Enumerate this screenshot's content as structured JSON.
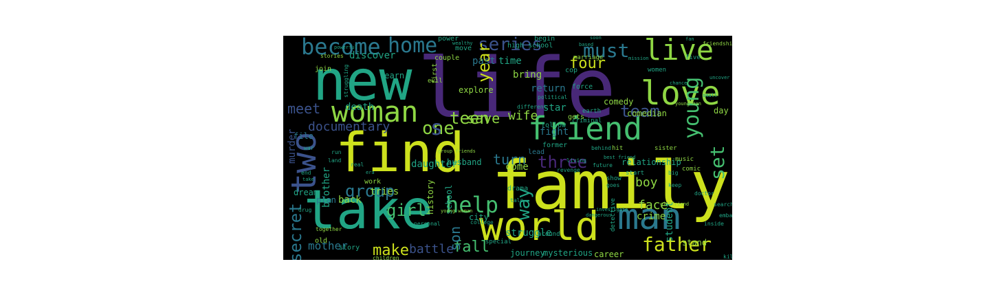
{
  "figure": {
    "background": "#000000",
    "page_background": "#ffffff",
    "palette": {
      "yellow": "#cde11d",
      "lime": "#8fd744",
      "green": "#45bf70",
      "teal": "#21a585",
      "tealblue": "#2a788e",
      "blue": "#33638d",
      "indigo": "#3b528b",
      "purple": "#482878",
      "darkpurple": "#440154"
    },
    "words": [
      {
        "text": "life",
        "color": "purple",
        "rotated": false
      },
      {
        "text": "find",
        "color": "yellow",
        "rotated": false
      },
      {
        "text": "family",
        "color": "yellow",
        "rotated": false
      },
      {
        "text": "new",
        "color": "teal",
        "rotated": false
      },
      {
        "text": "take",
        "color": "teal",
        "rotated": false
      },
      {
        "text": "world",
        "color": "yellow",
        "rotated": false
      },
      {
        "text": "friend",
        "color": "green",
        "rotated": false
      },
      {
        "text": "love",
        "color": "lime",
        "rotated": false
      },
      {
        "text": "man",
        "color": "tealblue",
        "rotated": false
      },
      {
        "text": "woman",
        "color": "lime",
        "rotated": false
      },
      {
        "text": "two",
        "color": "indigo",
        "rotated": true
      },
      {
        "text": "live",
        "color": "lime",
        "rotated": false
      },
      {
        "text": "become",
        "color": "tealblue",
        "rotated": false
      },
      {
        "text": "home",
        "color": "tealblue",
        "rotated": false
      },
      {
        "text": "father",
        "color": "yellow",
        "rotated": false
      },
      {
        "text": "young",
        "color": "green",
        "rotated": true
      },
      {
        "text": "help",
        "color": "green",
        "rotated": false
      },
      {
        "text": "one",
        "color": "lime",
        "rotated": false
      },
      {
        "text": "must",
        "color": "tealblue",
        "rotated": false
      },
      {
        "text": "series",
        "color": "indigo",
        "rotated": false
      },
      {
        "text": "team",
        "color": "indigo",
        "rotated": false
      },
      {
        "text": "three",
        "color": "purple",
        "rotated": false
      },
      {
        "text": "teen",
        "color": "lime",
        "rotated": false
      },
      {
        "text": "save",
        "color": "lime",
        "rotated": false
      },
      {
        "text": "turn",
        "color": "tealblue",
        "rotated": false
      },
      {
        "text": "group",
        "color": "tealblue",
        "rotated": false
      },
      {
        "text": "girl",
        "color": "green",
        "rotated": false
      },
      {
        "text": "year",
        "color": "yellow",
        "rotated": true
      },
      {
        "text": "four",
        "color": "yellow",
        "rotated": false
      },
      {
        "text": "set",
        "color": "green",
        "rotated": true
      },
      {
        "text": "way",
        "color": "teal",
        "rotated": true
      },
      {
        "text": "make",
        "color": "yellow",
        "rotated": false
      },
      {
        "text": "fall",
        "color": "green",
        "rotated": false
      },
      {
        "text": "son",
        "color": "tealblue",
        "rotated": true
      },
      {
        "text": "meet",
        "color": "indigo",
        "rotated": false
      },
      {
        "text": "wife",
        "color": "lime",
        "rotated": false
      },
      {
        "text": "secret",
        "color": "tealblue",
        "rotated": true
      },
      {
        "text": "documentary",
        "color": "indigo",
        "rotated": false
      },
      {
        "text": "face",
        "color": "lime",
        "rotated": false
      },
      {
        "text": "boy",
        "color": "lime",
        "rotated": false
      },
      {
        "text": "mother",
        "color": "tealblue",
        "rotated": false
      },
      {
        "text": "battle",
        "color": "indigo",
        "rotated": false
      },
      {
        "text": "murder",
        "color": "indigo",
        "rotated": true
      },
      {
        "text": "crime",
        "color": "lime",
        "rotated": false
      },
      {
        "text": "s",
        "color": "indigo",
        "rotated": false
      },
      {
        "text": "brother",
        "color": "teal",
        "rotated": true
      },
      {
        "text": "tries",
        "color": "lime",
        "rotated": false
      },
      {
        "text": "back",
        "color": "lime",
        "rotated": false
      },
      {
        "text": "come",
        "color": "lime",
        "rotated": false
      },
      {
        "text": "fight",
        "color": "tealblue",
        "rotated": false
      },
      {
        "text": "death",
        "color": "teal",
        "rotated": false
      },
      {
        "text": "discover",
        "color": "teal",
        "rotated": false
      },
      {
        "text": "learn",
        "color": "teal",
        "rotated": false
      },
      {
        "text": "past",
        "color": "tealblue",
        "rotated": false
      },
      {
        "text": "time",
        "color": "teal",
        "rotated": false
      },
      {
        "text": "bring",
        "color": "lime",
        "rotated": false
      },
      {
        "text": "return",
        "color": "tealblue",
        "rotated": false
      },
      {
        "text": "star",
        "color": "teal",
        "rotated": false
      },
      {
        "text": "explore",
        "color": "lime",
        "rotated": false
      },
      {
        "text": "daughter",
        "color": "teal",
        "rotated": false
      },
      {
        "text": "husband",
        "color": "teal",
        "rotated": false
      },
      {
        "text": "file",
        "color": "tealblue",
        "rotated": false
      },
      {
        "text": "relationship",
        "color": "teal",
        "rotated": false
      },
      {
        "text": "student",
        "color": "teal",
        "rotated": true
      },
      {
        "text": "stand",
        "color": "lime",
        "rotated": false
      },
      {
        "text": "struggle",
        "color": "teal",
        "rotated": false
      },
      {
        "text": "journey",
        "color": "teal",
        "rotated": false
      },
      {
        "text": "mysterious",
        "color": "teal",
        "rotated": false
      },
      {
        "text": "career",
        "color": "lime",
        "rotated": false
      },
      {
        "text": "adventure",
        "color": "teal",
        "rotated": true
      },
      {
        "text": "day",
        "color": "lime",
        "rotated": false
      },
      {
        "text": "comedy",
        "color": "lime",
        "rotated": false
      },
      {
        "text": "comedian",
        "color": "lime",
        "rotated": false
      },
      {
        "text": "dream",
        "color": "teal",
        "rotated": false
      },
      {
        "text": "plan",
        "color": "tealblue",
        "rotated": false
      },
      {
        "text": "history",
        "color": "lime",
        "rotated": true
      },
      {
        "text": "school",
        "color": "teal",
        "rotated": true
      },
      {
        "text": "first",
        "color": "lime",
        "rotated": true
      },
      {
        "text": "city",
        "color": "teal",
        "rotated": false
      },
      {
        "text": "old",
        "color": "lime",
        "rotated": false
      },
      {
        "text": "story",
        "color": "teal",
        "rotated": false
      },
      {
        "text": "work",
        "color": "lime",
        "rotated": false
      },
      {
        "text": "drama",
        "color": "teal",
        "rotated": false
      },
      {
        "text": "lead",
        "color": "tealblue",
        "rotated": false
      },
      {
        "text": "former",
        "color": "teal",
        "rotated": false
      },
      {
        "text": "follow",
        "color": "teal",
        "rotated": false
      },
      {
        "text": "gets",
        "color": "lime",
        "rotated": false
      },
      {
        "text": "force",
        "color": "teal",
        "rotated": false
      },
      {
        "text": "cop",
        "color": "teal",
        "rotated": false
      },
      {
        "text": "high school",
        "color": "teal",
        "rotated": false
      },
      {
        "text": "begin",
        "color": "teal",
        "rotated": false
      },
      {
        "text": "power",
        "color": "teal",
        "rotated": false
      },
      {
        "text": "move",
        "color": "teal",
        "rotated": false
      },
      {
        "text": "couple",
        "color": "lime",
        "rotated": false
      },
      {
        "text": "join",
        "color": "lime",
        "rotated": false
      },
      {
        "text": "stories",
        "color": "lime",
        "rotated": false
      },
      {
        "text": "evil",
        "color": "lime",
        "rotated": false
      },
      {
        "text": "marriage",
        "color": "lime",
        "rotated": false
      },
      {
        "text": "women",
        "color": "teal",
        "rotated": false
      },
      {
        "text": "sister",
        "color": "lime",
        "rotated": false
      },
      {
        "text": "music",
        "color": "lime",
        "rotated": false
      },
      {
        "text": "criminal",
        "color": "teal",
        "rotated": false
      },
      {
        "text": "earth",
        "color": "teal",
        "rotated": false
      },
      {
        "text": "together",
        "color": "lime",
        "rotated": false
      },
      {
        "text": "around",
        "color": "teal",
        "rotated": false
      },
      {
        "text": "special",
        "color": "teal",
        "rotated": false
      },
      {
        "text": "children",
        "color": "lime",
        "rotated": false
      },
      {
        "text": "friendship",
        "color": "lime",
        "rotated": false
      },
      {
        "text": "five",
        "color": "teal",
        "rotated": false
      },
      {
        "text": "show",
        "color": "teal",
        "rotated": false
      },
      {
        "text": "comic",
        "color": "lime",
        "rotated": false
      },
      {
        "text": "doctor",
        "color": "teal",
        "rotated": false
      },
      {
        "text": "hit",
        "color": "lime",
        "rotated": false
      },
      {
        "text": "start",
        "color": "teal",
        "rotated": false
      },
      {
        "text": "future",
        "color": "teal",
        "rotated": false
      },
      {
        "text": "different",
        "color": "teal",
        "rotated": false
      },
      {
        "text": "political",
        "color": "teal",
        "rotated": false
      },
      {
        "text": "personal",
        "color": "teal",
        "rotated": false
      },
      {
        "text": "college",
        "color": "teal",
        "rotated": false
      },
      {
        "text": "young man",
        "color": "lime",
        "rotated": false
      },
      {
        "text": "best friend",
        "color": "teal",
        "rotated": false
      },
      {
        "text": "detective",
        "color": "teal",
        "rotated": true
      },
      {
        "text": "land",
        "color": "teal",
        "rotated": false
      },
      {
        "text": "goes",
        "color": "teal",
        "rotated": false
      },
      {
        "text": "big",
        "color": "teal",
        "rotated": false
      },
      {
        "text": "keep",
        "color": "teal",
        "rotated": false
      },
      {
        "text": "embark",
        "color": "teal",
        "rotated": false
      },
      {
        "text": "search",
        "color": "teal",
        "rotated": false
      },
      {
        "text": "inside",
        "color": "teal",
        "rotated": false
      },
      {
        "text": "girlfriend",
        "color": "lime",
        "rotated": false
      },
      {
        "text": "dangerous",
        "color": "teal",
        "rotated": false
      },
      {
        "text": "investigate",
        "color": "teal",
        "rotated": false
      },
      {
        "text": "behind",
        "color": "teal",
        "rotated": false
      },
      {
        "text": "living",
        "color": "teal",
        "rotated": false
      },
      {
        "text": "revenge",
        "color": "teal",
        "rotated": false
      },
      {
        "text": "tale",
        "color": "teal",
        "rotated": false
      },
      {
        "text": "group friends",
        "color": "lime",
        "rotated": false
      },
      {
        "text": "young woman",
        "color": "lime",
        "rotated": false
      },
      {
        "text": "war",
        "color": "teal",
        "rotated": false
      },
      {
        "text": "real",
        "color": "teal",
        "rotated": false
      },
      {
        "text": "era",
        "color": "teal",
        "rotated": false
      },
      {
        "text": "based",
        "color": "teal",
        "rotated": false
      },
      {
        "text": "mission",
        "color": "teal",
        "rotated": false
      },
      {
        "text": "soon",
        "color": "teal",
        "rotated": false
      },
      {
        "text": "kill",
        "color": "teal",
        "rotated": false
      },
      {
        "text": "drug",
        "color": "teal",
        "rotated": false
      },
      {
        "text": "end",
        "color": "teal",
        "rotated": false
      },
      {
        "text": "run",
        "color": "teal",
        "rotated": false
      },
      {
        "text": "take",
        "color": "teal",
        "rotated": false
      },
      {
        "text": "fan",
        "color": "teal",
        "rotated": false
      },
      {
        "text": "wealthy",
        "color": "teal",
        "rotated": false
      },
      {
        "text": "struggling",
        "color": "teal",
        "rotated": true
      },
      {
        "text": "uncover",
        "color": "teal",
        "rotated": false
      },
      {
        "text": "powerful",
        "color": "teal",
        "rotated": false
      },
      {
        "text": "small",
        "color": "teal",
        "rotated": false
      },
      {
        "text": "chance",
        "color": "teal",
        "rotated": false
      }
    ]
  }
}
